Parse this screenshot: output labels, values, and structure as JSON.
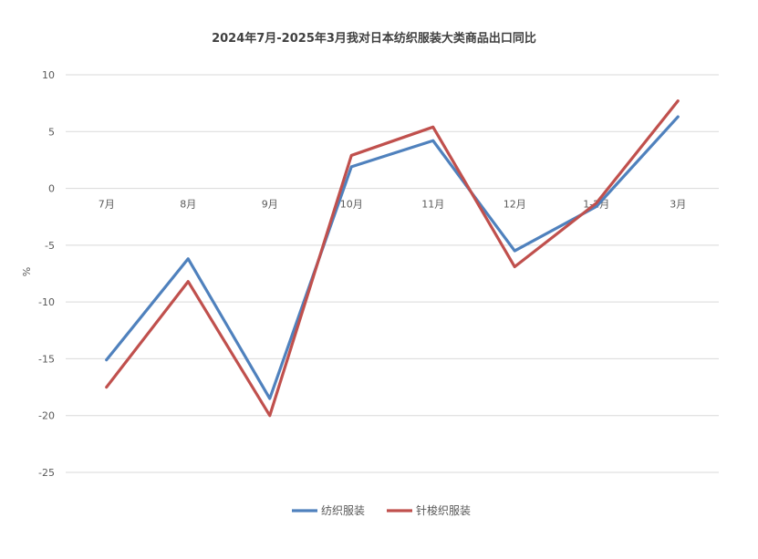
{
  "chart_data": {
    "type": "line",
    "title": "2024年7月-2025年3月我对日本纺织服装大类商品出口同比",
    "xlabel": "",
    "ylabel": "%",
    "categories": [
      "7月",
      "8月",
      "9月",
      "10月",
      "11月",
      "12月",
      "1-2月",
      "3月"
    ],
    "ylim": [
      -25,
      10
    ],
    "yticks": [
      10,
      5,
      0,
      -5,
      -10,
      -15,
      -20,
      -25
    ],
    "grid": true,
    "legend": "bottom",
    "series": [
      {
        "name": "纺织服装",
        "color": "#4f81bd",
        "values": [
          -15.1,
          -6.2,
          -18.5,
          1.9,
          4.2,
          -5.5,
          -1.6,
          6.3
        ]
      },
      {
        "name": "针梭织服装",
        "color": "#c0504d",
        "values": [
          -17.5,
          -8.2,
          -20.0,
          2.9,
          5.4,
          -6.9,
          -1.3,
          7.7
        ]
      }
    ]
  }
}
